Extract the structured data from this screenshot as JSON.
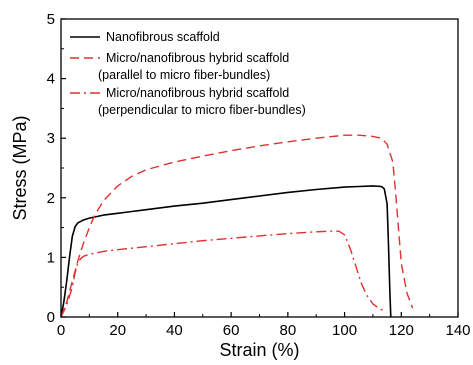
{
  "chart_data": {
    "type": "line",
    "xlabel": "Strain (%)",
    "ylabel": "Stress (MPa)",
    "xlim": [
      0,
      140
    ],
    "ylim": [
      0,
      5
    ],
    "x_ticks": [
      "0",
      "20",
      "40",
      "60",
      "80",
      "100",
      "120",
      "140"
    ],
    "y_ticks": [
      "0",
      "1",
      "2",
      "3",
      "4",
      "5"
    ],
    "grid": false,
    "legend_position": "top-left",
    "series": [
      {
        "name": "Nanofibrous scaffold",
        "line_style": "solid",
        "color": "#000000",
        "x": [
          0,
          1,
          2,
          3,
          4,
          5,
          6,
          8,
          10,
          15,
          20,
          30,
          40,
          50,
          60,
          70,
          80,
          90,
          100,
          105,
          110,
          113,
          114,
          115,
          115.5,
          116,
          116.3
        ],
        "y": [
          0,
          0.25,
          0.6,
          1.0,
          1.35,
          1.52,
          1.58,
          1.63,
          1.66,
          1.71,
          1.74,
          1.8,
          1.86,
          1.91,
          1.97,
          2.03,
          2.09,
          2.14,
          2.18,
          2.19,
          2.2,
          2.19,
          2.15,
          1.9,
          1.2,
          0.4,
          0.0
        ]
      },
      {
        "name": "Micro/nanofibrous hybrid scaffold (parallel to micro fiber-bundles)",
        "line_style": "dashed",
        "color": "#e03030",
        "x": [
          0,
          2,
          4,
          6,
          8,
          10,
          12,
          15,
          20,
          25,
          30,
          40,
          50,
          60,
          70,
          80,
          90,
          100,
          105,
          110,
          113,
          115,
          117,
          118,
          119,
          120,
          122,
          124
        ],
        "y": [
          0,
          0.25,
          0.6,
          0.95,
          1.25,
          1.5,
          1.72,
          1.95,
          2.2,
          2.36,
          2.47,
          2.6,
          2.7,
          2.79,
          2.87,
          2.94,
          3.0,
          3.05,
          3.05,
          3.03,
          3.0,
          2.9,
          2.6,
          2.1,
          1.5,
          0.9,
          0.4,
          0.15
        ]
      },
      {
        "name": "Micro/nanofibrous hybrid scaffold (perpendicular to micro fiber-bundles)",
        "line_style": "dash-dot",
        "color": "#e03030",
        "x": [
          0,
          2,
          4,
          5,
          6,
          7,
          8,
          10,
          12,
          15,
          20,
          30,
          40,
          50,
          60,
          70,
          80,
          90,
          95,
          98,
          100,
          102,
          104,
          106,
          108,
          110,
          112,
          114
        ],
        "y": [
          0,
          0.2,
          0.5,
          0.75,
          0.92,
          0.98,
          1.02,
          1.05,
          1.07,
          1.1,
          1.13,
          1.18,
          1.23,
          1.28,
          1.32,
          1.36,
          1.4,
          1.43,
          1.44,
          1.44,
          1.38,
          1.15,
          0.85,
          0.55,
          0.35,
          0.22,
          0.15,
          0.1
        ]
      }
    ],
    "legend": [
      {
        "lines": [
          "Nanofibrous scaffold"
        ]
      },
      {
        "lines": [
          "Micro/nanofibrous hybrid scaffold",
          "(parallel to micro fiber-bundles)"
        ]
      },
      {
        "lines": [
          "Micro/nanofibrous hybrid scaffold",
          "(perpendicular to micro fiber-bundles)"
        ]
      }
    ]
  }
}
